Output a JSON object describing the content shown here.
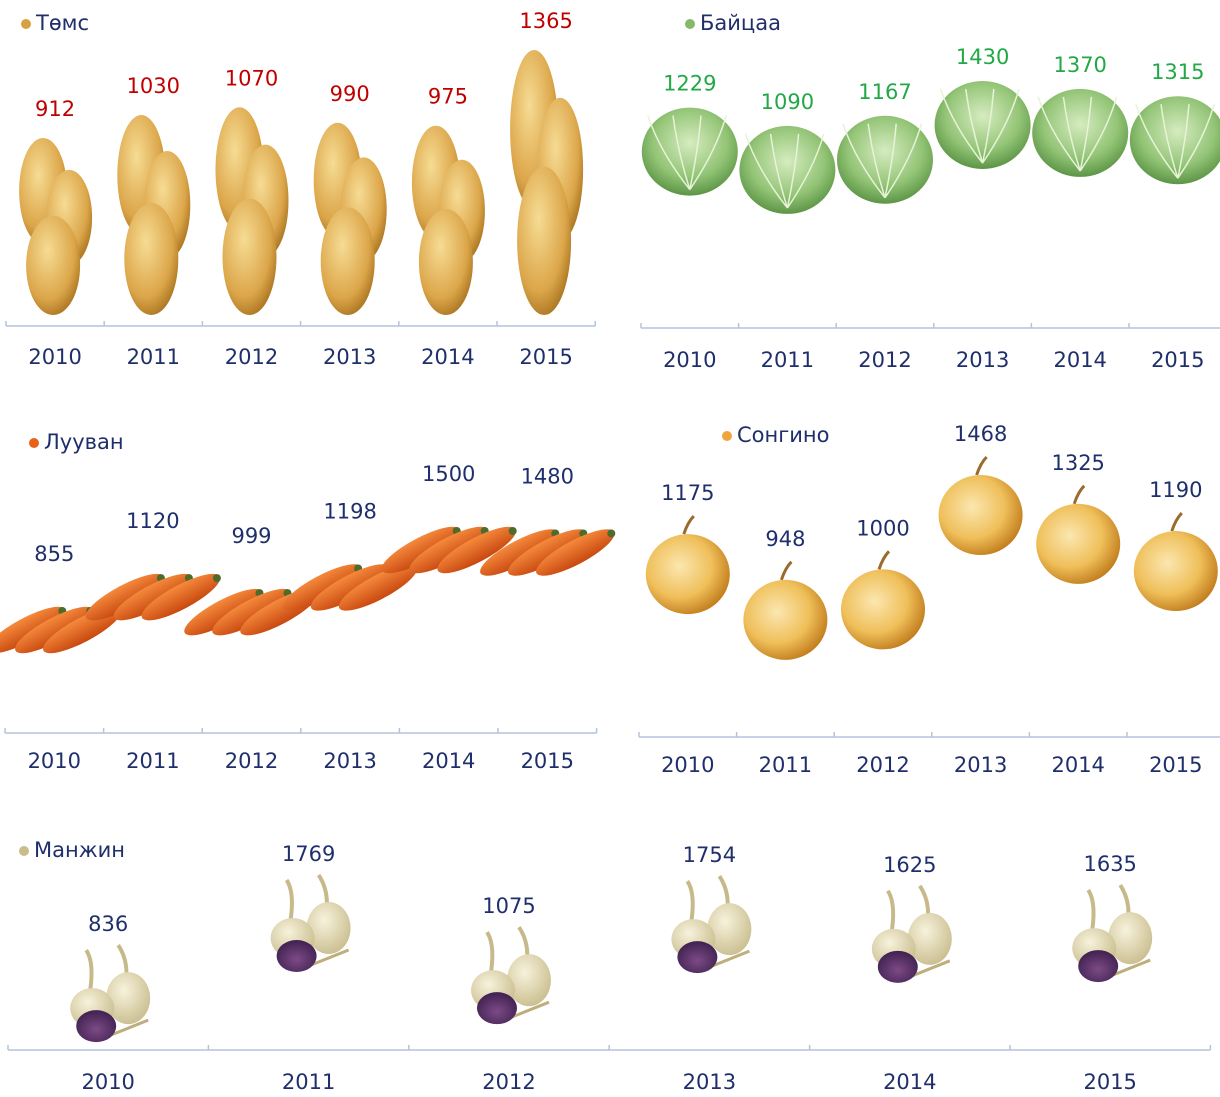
{
  "chart_data": [
    {
      "type": "bar",
      "title": "Төмс",
      "categories": [
        "2010",
        "2011",
        "2012",
        "2013",
        "2014",
        "2015"
      ],
      "values": [
        912,
        1030,
        1070,
        990,
        975,
        1365
      ],
      "label_color": "#c00000"
    },
    {
      "type": "pictograph",
      "title": "Байцаа",
      "categories": [
        "2010",
        "2011",
        "2012",
        "2013",
        "2014",
        "2015"
      ],
      "values": [
        1229,
        1090,
        1167,
        1430,
        1370,
        1315
      ],
      "label_color": "#22a846"
    },
    {
      "type": "pictograph",
      "title": "Лууван",
      "categories": [
        "2010",
        "2011",
        "2012",
        "2013",
        "2014",
        "2015"
      ],
      "values": [
        855,
        1120,
        999,
        1198,
        1500,
        1480
      ],
      "label_color": "#1f2f6b"
    },
    {
      "type": "pictograph",
      "title": "Сонгино",
      "categories": [
        "2010",
        "2011",
        "2012",
        "2013",
        "2014",
        "2015"
      ],
      "values": [
        1175,
        948,
        1000,
        1468,
        1325,
        1190
      ],
      "label_color": "#1f2f6b"
    },
    {
      "type": "pictograph",
      "title": "Манжин",
      "categories": [
        "2010",
        "2011",
        "2012",
        "2013",
        "2014",
        "2015"
      ],
      "values": [
        836,
        1769,
        1075,
        1754,
        1625,
        1635
      ],
      "label_color": "#1f2f6b"
    }
  ]
}
